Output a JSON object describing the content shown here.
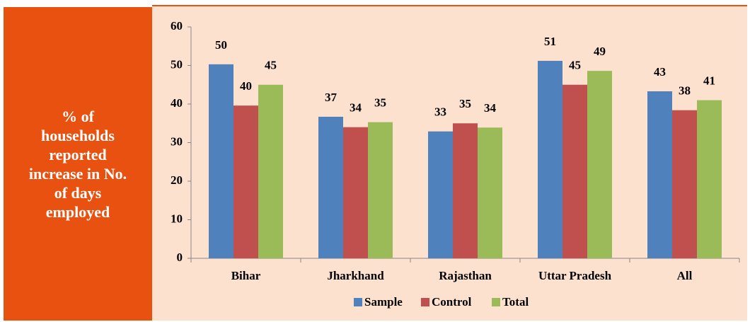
{
  "chart_data": {
    "type": "bar",
    "ylabel": [
      "% of",
      "households",
      "reported",
      "increase in No.",
      "of days",
      "employed"
    ],
    "categories": [
      "Bihar",
      "Jharkhand",
      "Rajasthan",
      "Uttar Pradesh",
      "All"
    ],
    "series": [
      {
        "name": "Sample",
        "color": "#4f81bd",
        "values": [
          50.3,
          36.7,
          32.9,
          51.2,
          43.3
        ],
        "value_labels": [
          "50",
          "37",
          "33",
          "51",
          "43"
        ]
      },
      {
        "name": "Control",
        "color": "#c0504d",
        "values": [
          39.6,
          34,
          35,
          45,
          38.4
        ],
        "value_labels": [
          "40",
          "34",
          "35",
          "45",
          "38"
        ]
      },
      {
        "name": "Total",
        "color": "#9bbb59",
        "values": [
          45,
          35.3,
          33.9,
          48.6,
          41
        ],
        "value_labels": [
          "45",
          "35",
          "34",
          "49",
          "41"
        ]
      }
    ],
    "ylim": [
      0,
      60
    ],
    "yticks": [
      0,
      10,
      20,
      30,
      40,
      50,
      60
    ],
    "grid": false,
    "legend": "bottom"
  }
}
